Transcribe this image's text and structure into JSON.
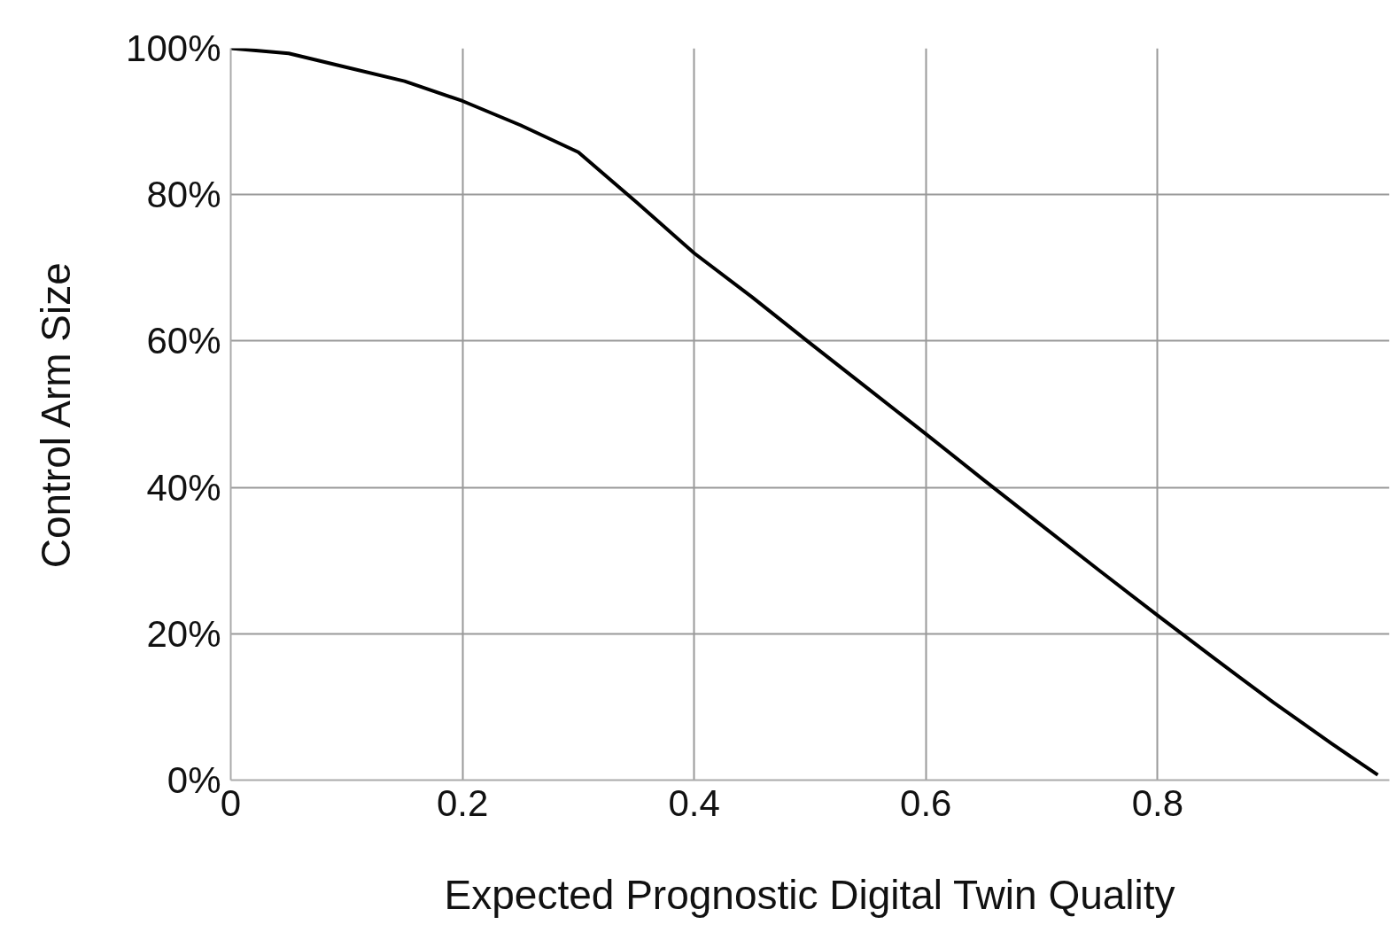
{
  "chart_data": {
    "type": "line",
    "xlabel": "Expected Prognostic Digital Twin Quality",
    "ylabel": "Control Arm Size",
    "x": [
      0,
      0.05,
      0.1,
      0.15,
      0.2,
      0.25,
      0.3,
      0.35,
      0.4,
      0.45,
      0.5,
      0.55,
      0.6,
      0.65,
      0.7,
      0.75,
      0.8,
      0.85,
      0.9,
      0.95,
      0.99
    ],
    "series": [
      {
        "color": "#000000",
        "values": [
          100,
          99.3,
          97.4,
          95.5,
          92.8,
          89.5,
          85.8,
          79,
          72,
          66,
          59.7,
          53.5,
          47.3,
          41,
          34.8,
          28.6,
          22.5,
          16.5,
          10.6,
          5,
          0.7
        ]
      }
    ],
    "xlim": [
      0,
      1
    ],
    "xticks": [
      0,
      0.2,
      0.4,
      0.6,
      0.8
    ],
    "ylim": [
      0,
      100
    ],
    "yticks": [
      {
        "value": 0,
        "label": "0%"
      },
      {
        "value": 20,
        "label": "20%"
      },
      {
        "value": 40,
        "label": "40%"
      },
      {
        "value": 60,
        "label": "60%"
      },
      {
        "value": 80,
        "label": "80%"
      },
      {
        "value": 100,
        "label": "100%"
      }
    ],
    "grid": true,
    "marker": "none",
    "line_style": "solid"
  }
}
